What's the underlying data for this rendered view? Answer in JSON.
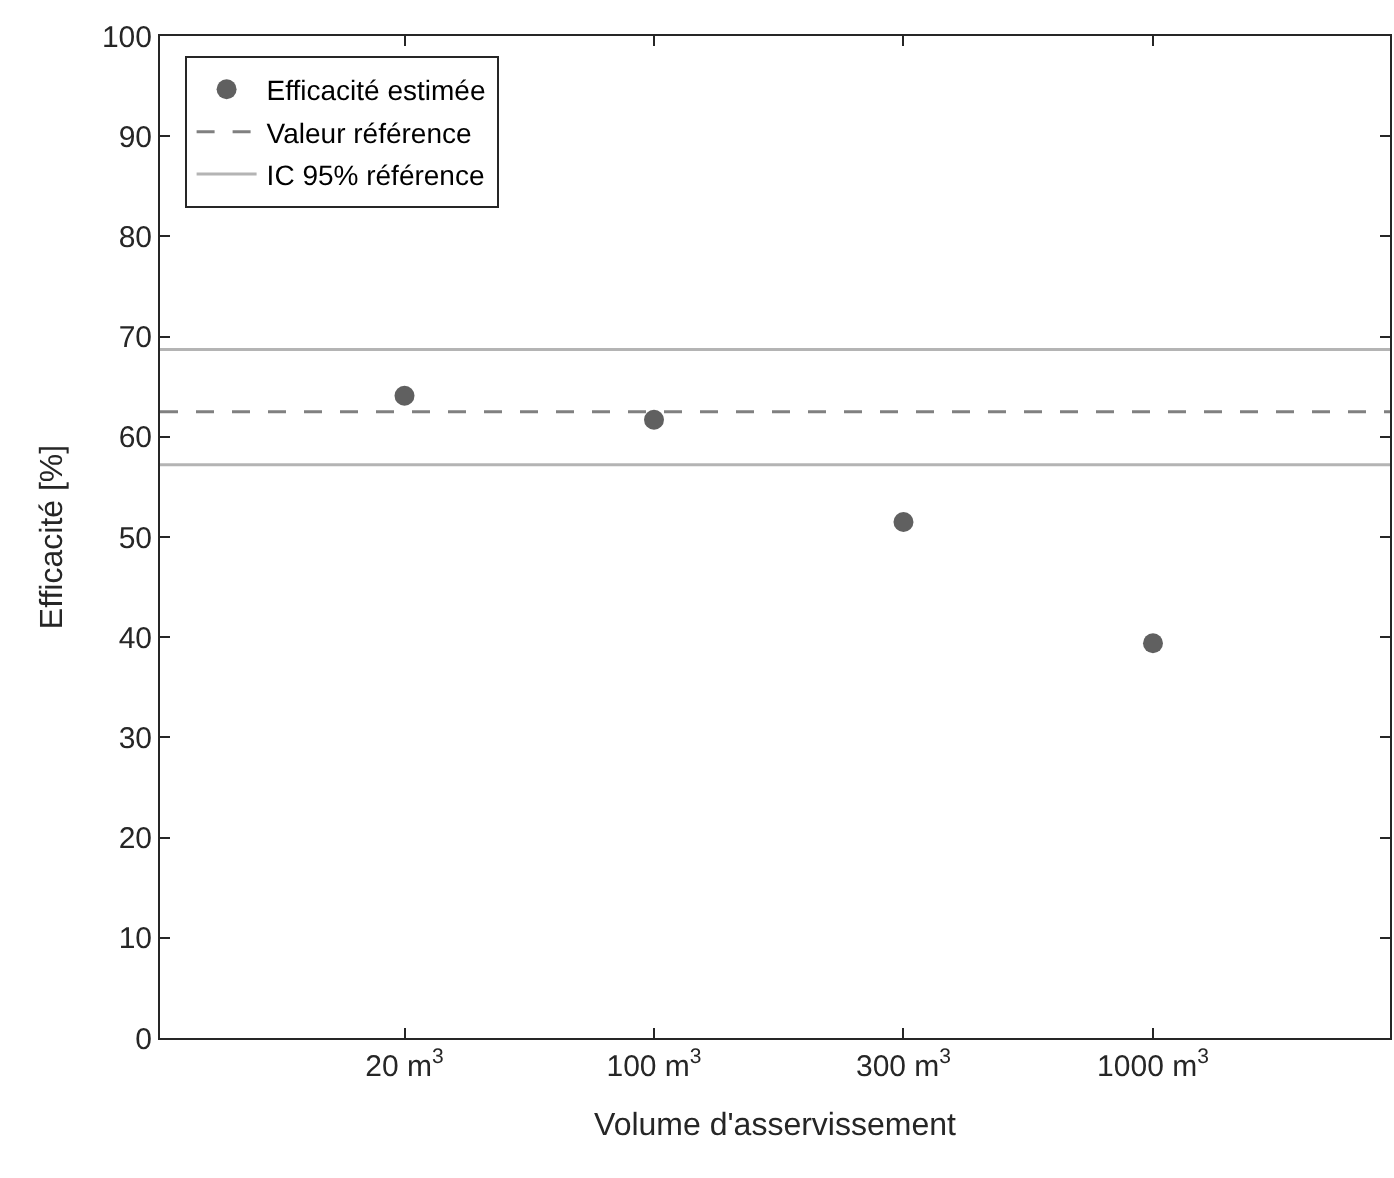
{
  "chart_data": {
    "type": "scatter",
    "xlabel": "Volume d'asservissement",
    "ylabel": "Efficacité [%]",
    "categories": [
      "20 m$^{3}$",
      "100 m$^{3}$",
      "300 m$^{3}$",
      "1000 m$^{3}$"
    ],
    "series": [
      {
        "name": "Efficacité estimée",
        "color": "#606060",
        "values": [
          64.1,
          61.7,
          51.5,
          39.4
        ]
      }
    ],
    "marker": "circle",
    "ref_lines": [
      {
        "axis": "y",
        "value": 62.5,
        "label": "Valeur référence",
        "color": "#808080",
        "line_style": "dashed"
      },
      {
        "axis": "y",
        "value": 68.7,
        "label": "IC 95% référence",
        "color": "#b4b4b4",
        "line_style": "solid"
      },
      {
        "axis": "y",
        "value": 57.2,
        "color": "#b4b4b4",
        "line_style": "solid"
      }
    ],
    "ylim": [
      0,
      100
    ],
    "yticks": [
      0,
      10,
      20,
      30,
      40,
      50,
      60,
      70,
      80,
      90,
      100
    ],
    "legend": "top left"
  }
}
